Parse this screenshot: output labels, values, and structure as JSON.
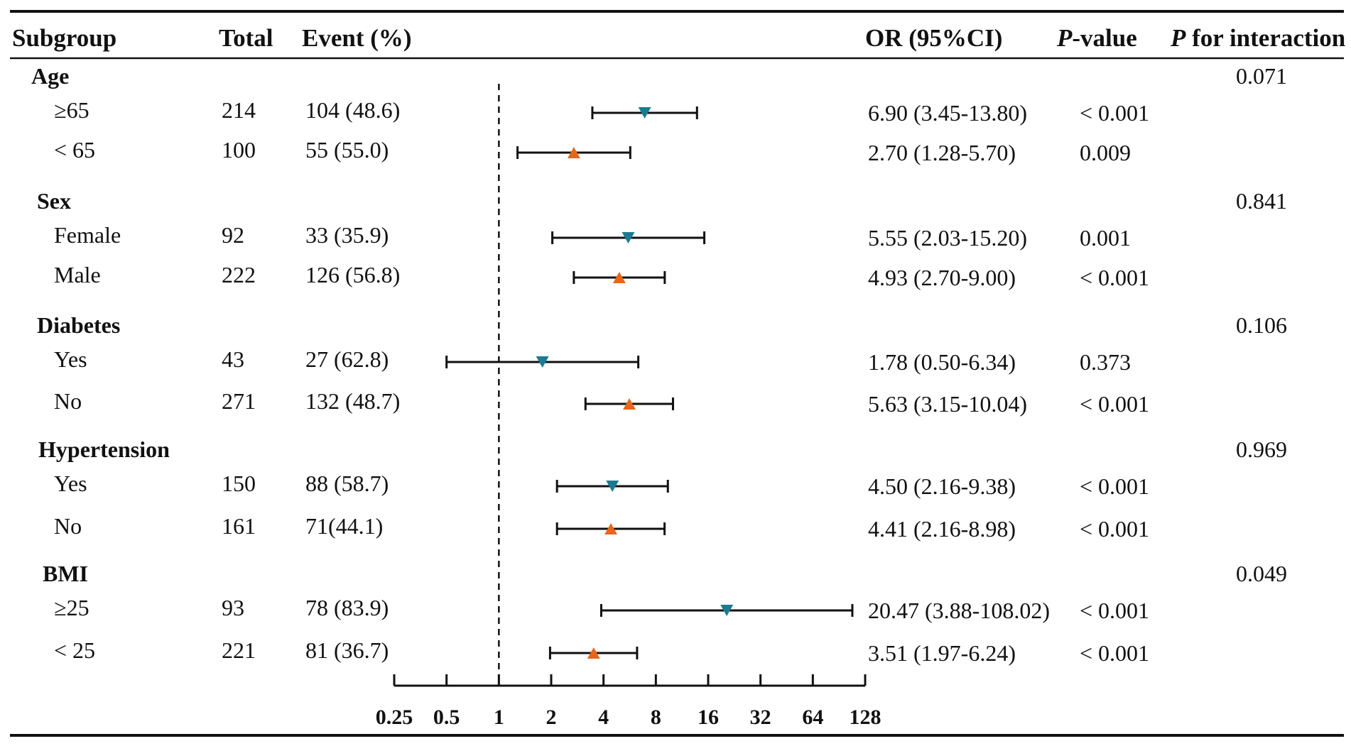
{
  "headers": {
    "subgroup": "Subgroup",
    "total": "Total",
    "event": "Event (%)",
    "or": "OR (95%CI)",
    "p_italic": "P",
    "p_rest": "-value",
    "pint_italic": "P",
    "pint_rest": " for interaction"
  },
  "chart_data": {
    "type": "forest",
    "xscale": "log2",
    "xlim": [
      0.25,
      128
    ],
    "reference_line": 1,
    "xticks": [
      "0.25",
      "0.5",
      "1",
      "2",
      "4",
      "8",
      "16",
      "32",
      "64",
      "128"
    ],
    "xtick_values": [
      0.25,
      0.5,
      1,
      2,
      4,
      8,
      16,
      32,
      64,
      128
    ],
    "colors": {
      "marker_a": "#1a7b91",
      "marker_b": "#e8661a",
      "line": "#111111"
    },
    "groups": [
      {
        "name": "Age",
        "p_interaction": "0.071",
        "rows": [
          {
            "label": "≥65",
            "total": "214",
            "event": "104 (48.6)",
            "or_text": "6.90 (3.45-13.80)",
            "p": "< 0.001",
            "or": 6.9,
            "lo": 3.45,
            "hi": 13.8,
            "marker": "down"
          },
          {
            "label": "< 65",
            "total": "100",
            "event": "55 (55.0)",
            "or_text": "2.70 (1.28-5.70)",
            "p": "0.009",
            "or": 2.7,
            "lo": 1.28,
            "hi": 5.7,
            "marker": "up"
          }
        ]
      },
      {
        "name": "Sex",
        "p_interaction": "0.841",
        "rows": [
          {
            "label": "Female",
            "total": "92",
            "event": "33 (35.9)",
            "or_text": "5.55 (2.03-15.20)",
            "p": "0.001",
            "or": 5.55,
            "lo": 2.03,
            "hi": 15.2,
            "marker": "down"
          },
          {
            "label": "Male",
            "total": "222",
            "event": "126 (56.8)",
            "or_text": "4.93 (2.70-9.00)",
            "p": "< 0.001",
            "or": 4.93,
            "lo": 2.7,
            "hi": 9.0,
            "marker": "up"
          }
        ]
      },
      {
        "name": "Diabetes",
        "p_interaction": "0.106",
        "rows": [
          {
            "label": "Yes",
            "total": "43",
            "event": "27 (62.8)",
            "or_text": "1.78 (0.50-6.34)",
            "p": "0.373",
            "or": 1.78,
            "lo": 0.5,
            "hi": 6.34,
            "marker": "down"
          },
          {
            "label": "No",
            "total": "271",
            "event": "132 (48.7)",
            "or_text": "5.63 (3.15-10.04)",
            "p": "< 0.001",
            "or": 5.63,
            "lo": 3.15,
            "hi": 10.04,
            "marker": "up"
          }
        ]
      },
      {
        "name": "Hypertension",
        "p_interaction": "0.969",
        "rows": [
          {
            "label": "Yes",
            "total": "150",
            "event": "88 (58.7)",
            "or_text": "4.50 (2.16-9.38)",
            "p": "< 0.001",
            "or": 4.5,
            "lo": 2.16,
            "hi": 9.38,
            "marker": "down"
          },
          {
            "label": "No",
            "total": "161",
            "event": "71(44.1)",
            "or_text": "4.41 (2.16-8.98)",
            "p": "< 0.001",
            "or": 4.41,
            "lo": 2.16,
            "hi": 8.98,
            "marker": "up"
          }
        ]
      },
      {
        "name": "BMI",
        "p_interaction": "0.049",
        "rows": [
          {
            "label": "≥25",
            "total": "93",
            "event": "78 (83.9)",
            "or_text": "20.47 (3.88-108.02)",
            "p": "< 0.001",
            "or": 20.47,
            "lo": 3.88,
            "hi": 108.02,
            "marker": "down"
          },
          {
            "label": "< 25",
            "total": "221",
            "event": "81 (36.7)",
            "or_text": "3.51 (1.97-6.24)",
            "p": "< 0.001",
            "or": 3.51,
            "lo": 1.97,
            "hi": 6.24,
            "marker": "up"
          }
        ]
      }
    ]
  }
}
